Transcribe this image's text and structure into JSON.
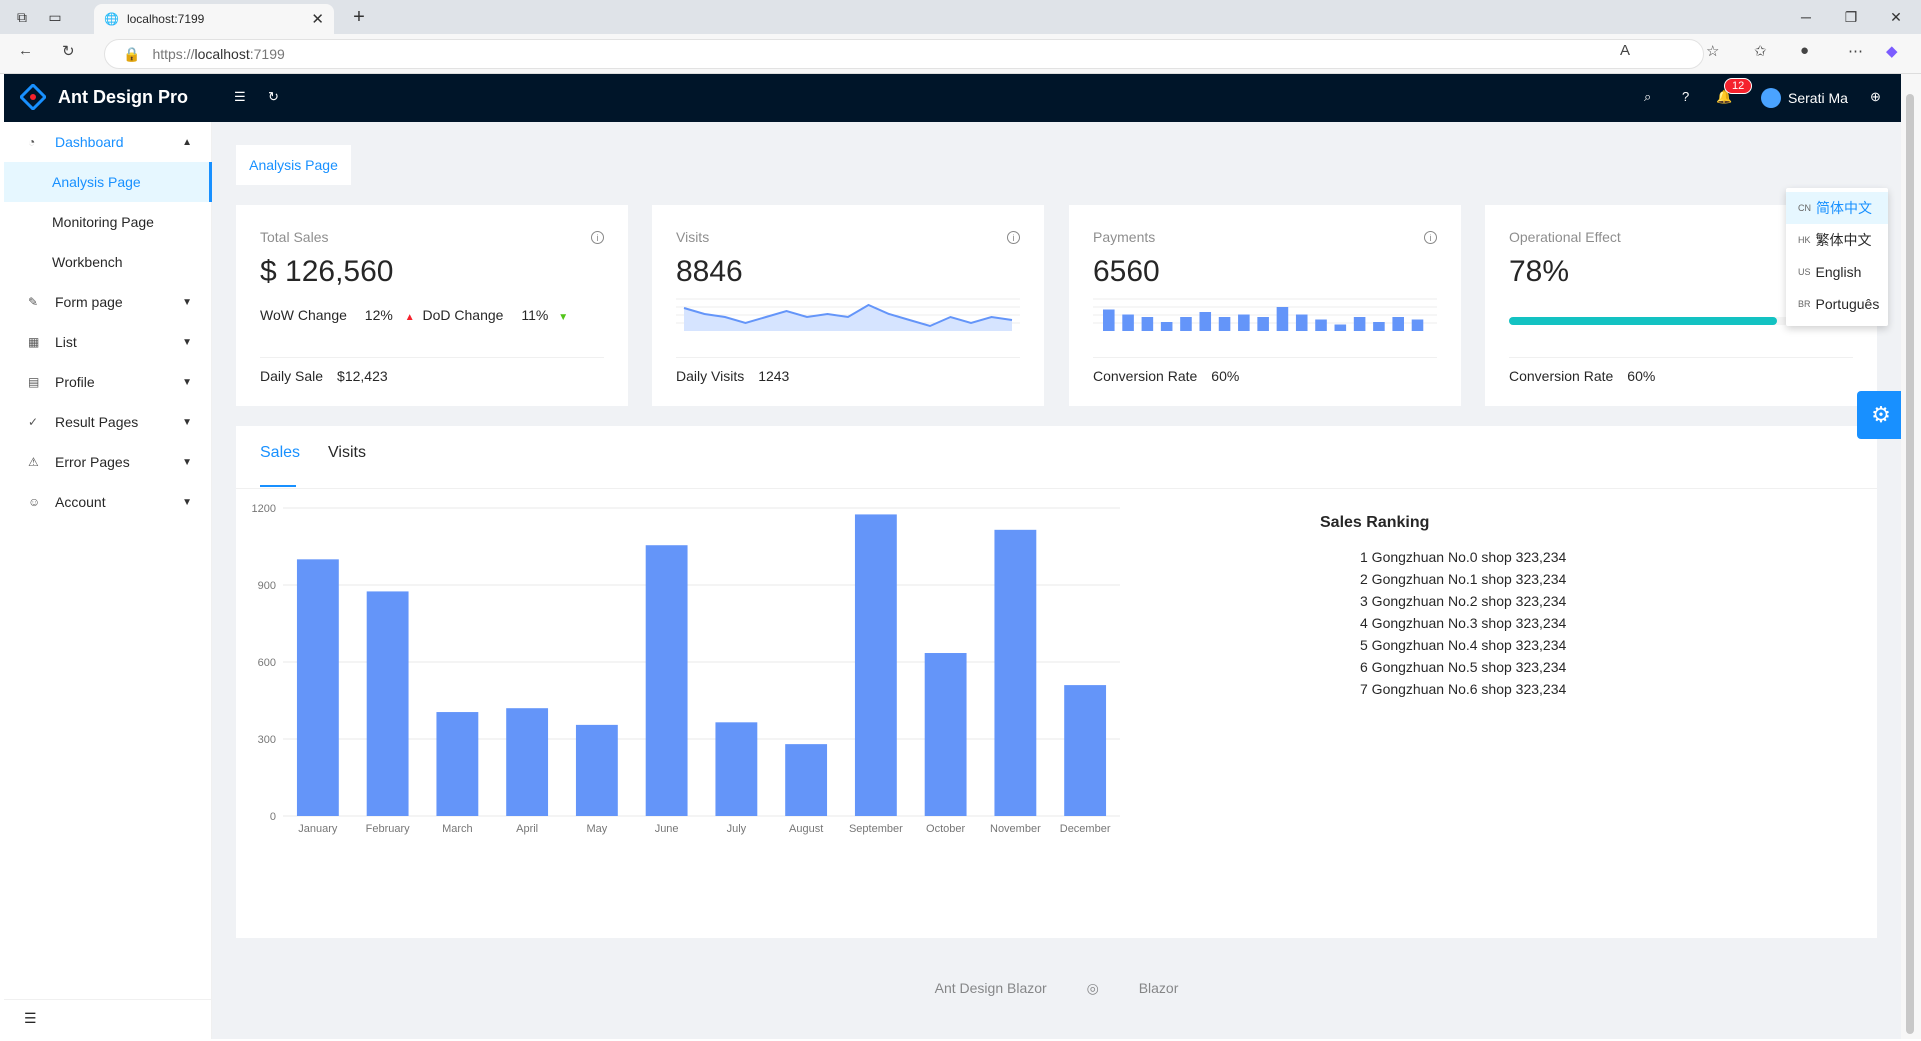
{
  "browser": {
    "tab_title": "localhost:7199",
    "tab_close": "✕",
    "new_tab": "+",
    "url_prefix": "https://",
    "url_host": "localhost",
    "url_port": ":7199",
    "window_min": "─",
    "window_max": "❐",
    "window_close": "✕"
  },
  "header": {
    "app_name": "Ant Design Pro",
    "notification_count": "12",
    "user_name": "Serati Ma"
  },
  "sidebar": {
    "items": [
      {
        "label": "Dashboard",
        "icon": "dashboard-icon"
      },
      {
        "label": "Analysis Page"
      },
      {
        "label": "Monitoring Page"
      },
      {
        "label": "Workbench"
      },
      {
        "label": "Form page",
        "icon": "form-icon"
      },
      {
        "label": "List",
        "icon": "table-icon"
      },
      {
        "label": "Profile",
        "icon": "profile-icon"
      },
      {
        "label": "Result Pages",
        "icon": "check-circle-icon"
      },
      {
        "label": "Error Pages",
        "icon": "warning-icon"
      },
      {
        "label": "Account",
        "icon": "user-icon"
      }
    ]
  },
  "page_tab": "Analysis Page",
  "cards": {
    "total_sales": {
      "title": "Total Sales",
      "value": "$ 126,560",
      "wow_label": "WoW Change",
      "wow_value": "12%",
      "dod_label": "DoD Change",
      "dod_value": "11%",
      "footer_label": "Daily Sale",
      "footer_value": "$12,423"
    },
    "visits": {
      "title": "Visits",
      "value": "8846",
      "footer_label": "Daily Visits",
      "footer_value": "1243",
      "spark": [
        7,
        5,
        4,
        2,
        4,
        6,
        4,
        5,
        4,
        8,
        5,
        3,
        1,
        4,
        2,
        4,
        3
      ]
    },
    "payments": {
      "title": "Payments",
      "value": "6560",
      "footer_label": "Conversion Rate",
      "footer_value": "60%",
      "bars": [
        7,
        5,
        4,
        2,
        4,
        6,
        4,
        5,
        4,
        8,
        5,
        3,
        1,
        4,
        2,
        4,
        3
      ]
    },
    "operational": {
      "title": "Operational Effect",
      "value": "78%",
      "progress": 0.78,
      "footer_label": "Conversion Rate",
      "footer_value": "60%"
    }
  },
  "sales_tabs": {
    "sales": "Sales",
    "visits": "Visits"
  },
  "chart_data": {
    "type": "bar",
    "categories": [
      "January",
      "February",
      "March",
      "April",
      "May",
      "June",
      "July",
      "August",
      "September",
      "October",
      "November",
      "December"
    ],
    "values": [
      1000,
      875,
      405,
      420,
      355,
      1055,
      365,
      280,
      1175,
      635,
      1115,
      510
    ],
    "ylim": [
      0,
      1200
    ],
    "yticks": [
      "0",
      "300",
      "600",
      "900",
      "1200"
    ],
    "grid": true,
    "color": "#6495f9"
  },
  "ranking": {
    "title": "Sales Ranking",
    "items": [
      "1 Gongzhuan No.0 shop 323,234",
      "2 Gongzhuan No.1 shop 323,234",
      "3 Gongzhuan No.2 shop 323,234",
      "4 Gongzhuan No.3 shop 323,234",
      "5 Gongzhuan No.4 shop 323,234",
      "6 Gongzhuan No.5 shop 323,234",
      "7 Gongzhuan No.6 shop 323,234"
    ]
  },
  "languages": [
    {
      "flag": "CN",
      "label": "简体中文"
    },
    {
      "flag": "HK",
      "label": "繁体中文"
    },
    {
      "flag": "US",
      "label": "English"
    },
    {
      "flag": "BR",
      "label": "Português"
    }
  ],
  "footer": {
    "link1": "Ant Design Blazor",
    "link2": "Blazor"
  },
  "colors": {
    "primary": "#1890ff",
    "header": "#001529",
    "progress": "#13c2c2",
    "up": "#f5222d",
    "down": "#52c41a"
  }
}
